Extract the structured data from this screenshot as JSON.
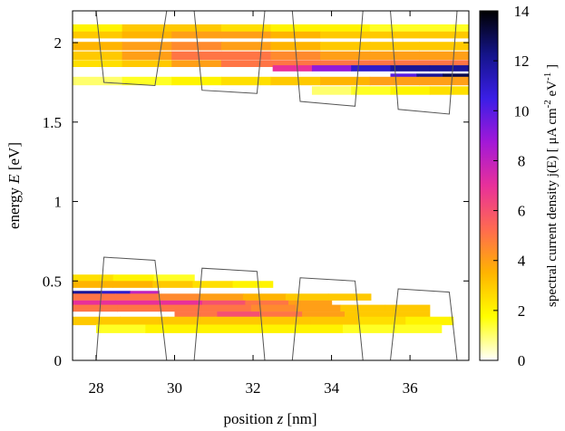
{
  "chart_data": {
    "type": "heatmap",
    "xlabel": "position z [nm]",
    "xlabel_parts": [
      "position ",
      "z",
      " [nm]"
    ],
    "ylabel": "energy E [eV]",
    "ylabel_parts": [
      "energy ",
      "E",
      " [eV]"
    ],
    "colorbar_label": "spectral current density  j(E) [ μA cm^-2 eV^-1 ]",
    "xlim": [
      27.4,
      37.5
    ],
    "ylim": [
      0,
      2.2
    ],
    "clim": [
      0,
      14
    ],
    "x_ticks": [
      28,
      30,
      32,
      34,
      36
    ],
    "x_tick_labels": [
      "28",
      "30",
      "32",
      "34",
      "36"
    ],
    "y_ticks": [
      0,
      0.5,
      1,
      1.5,
      2
    ],
    "y_tick_labels": [
      "0",
      "0.5",
      "1",
      "1.5",
      "2"
    ],
    "colorbar_ticks": [
      0,
      2,
      4,
      6,
      8,
      10,
      12,
      14
    ],
    "colorbar_tick_labels": [
      "0",
      "2",
      "4",
      "6",
      "8",
      "10",
      "12",
      "14"
    ],
    "colormap": [
      "#ffffff",
      "#ffff00",
      "#ffb400",
      "#ff6a50",
      "#e8309a",
      "#a218d8",
      "#3a1ee6",
      "#14148a",
      "#000000"
    ],
    "grid": false,
    "bands": [
      {
        "z0": 27.4,
        "z1": 37.5,
        "E": 2.09,
        "dE": 0.05,
        "j": [
          2,
          3,
          3,
          2.5,
          2,
          2,
          1.5,
          1.5
        ]
      },
      {
        "z0": 27.4,
        "z1": 37.5,
        "E": 2.05,
        "dE": 0.04,
        "j": [
          3,
          3.5,
          4,
          4,
          3.5,
          3,
          3,
          3
        ]
      },
      {
        "z0": 27.4,
        "z1": 37.5,
        "E": 1.98,
        "dE": 0.05,
        "j": [
          3.5,
          4,
          4.5,
          4,
          3.5,
          3,
          3,
          3
        ]
      },
      {
        "z0": 27.4,
        "z1": 37.5,
        "E": 1.92,
        "dE": 0.05,
        "j": [
          3,
          4,
          5,
          5,
          4.5,
          4,
          4,
          4
        ]
      },
      {
        "z0": 27.4,
        "z1": 37.5,
        "E": 1.87,
        "dE": 0.04,
        "j": [
          2.5,
          3,
          4,
          5,
          5,
          5,
          5,
          5
        ]
      },
      {
        "z0": 32.5,
        "z1": 37.5,
        "E": 1.84,
        "dE": 0.035,
        "j": [
          7,
          9,
          11,
          12,
          12
        ]
      },
      {
        "z0": 35.5,
        "z1": 37.5,
        "E": 1.79,
        "dE": 0.03,
        "j": [
          10,
          12,
          13
        ]
      },
      {
        "z0": 27.4,
        "z1": 37.5,
        "E": 1.76,
        "dE": 0.05,
        "j": [
          1,
          1.5,
          2,
          2.5,
          3,
          3.5,
          4,
          4
        ]
      },
      {
        "z0": 33.5,
        "z1": 37.5,
        "E": 1.7,
        "dE": 0.05,
        "j": [
          1,
          1.5,
          2,
          2.5
        ]
      },
      {
        "z0": 27.4,
        "z1": 30.5,
        "E": 0.52,
        "dE": 0.04,
        "j": [
          2.5,
          2,
          1.5
        ]
      },
      {
        "z0": 27.4,
        "z1": 32.5,
        "E": 0.48,
        "dE": 0.04,
        "j": [
          3.5,
          3.5,
          3,
          2.5,
          2
        ]
      },
      {
        "z0": 27.4,
        "z1": 29.6,
        "E": 0.42,
        "dE": 0.035,
        "j": [
          12,
          11,
          8
        ]
      },
      {
        "z0": 27.4,
        "z1": 35.0,
        "E": 0.4,
        "dE": 0.04,
        "j": [
          5,
          5,
          4.5,
          4,
          3.5,
          3,
          3
        ]
      },
      {
        "z0": 27.4,
        "z1": 34.0,
        "E": 0.36,
        "dE": 0.035,
        "j": [
          7,
          7,
          7,
          6,
          5,
          4
        ]
      },
      {
        "z0": 27.4,
        "z1": 36.5,
        "E": 0.33,
        "dE": 0.04,
        "j": [
          5,
          5,
          5,
          5,
          4.5,
          4,
          3,
          3
        ]
      },
      {
        "z0": 30.0,
        "z1": 36.5,
        "E": 0.29,
        "dE": 0.035,
        "j": [
          5,
          6,
          5,
          4,
          3,
          3
        ]
      },
      {
        "z0": 27.4,
        "z1": 37.1,
        "E": 0.25,
        "dE": 0.05,
        "j": [
          3,
          3,
          3,
          3,
          3,
          3,
          2.5,
          2
        ]
      },
      {
        "z0": 28.0,
        "z1": 36.8,
        "E": 0.2,
        "dE": 0.05,
        "j": [
          1.5,
          2,
          2,
          2,
          2,
          1.5,
          1.5
        ]
      }
    ],
    "band_edges": [
      {
        "name": "conduction",
        "points": [
          [
            28.0,
            2.2
          ],
          [
            28.2,
            1.75
          ],
          [
            29.5,
            1.73
          ],
          [
            29.8,
            2.2
          ],
          [
            30.5,
            2.2
          ],
          [
            30.7,
            1.7
          ],
          [
            32.1,
            1.68
          ],
          [
            32.3,
            2.2
          ],
          [
            33.0,
            2.2
          ],
          [
            33.2,
            1.63
          ],
          [
            34.6,
            1.6
          ],
          [
            34.8,
            2.2
          ],
          [
            35.5,
            2.2
          ],
          [
            35.7,
            1.58
          ],
          [
            37.0,
            1.55
          ],
          [
            37.2,
            2.2
          ]
        ]
      },
      {
        "name": "valence",
        "points": [
          [
            28.0,
            0
          ],
          [
            28.2,
            0.65
          ],
          [
            29.5,
            0.63
          ],
          [
            29.8,
            0
          ],
          [
            30.5,
            0
          ],
          [
            30.7,
            0.58
          ],
          [
            32.1,
            0.56
          ],
          [
            32.3,
            0
          ],
          [
            33.0,
            0
          ],
          [
            33.2,
            0.52
          ],
          [
            34.6,
            0.5
          ],
          [
            34.8,
            0
          ],
          [
            35.5,
            0
          ],
          [
            35.7,
            0.45
          ],
          [
            37.0,
            0.43
          ],
          [
            37.2,
            0
          ]
        ]
      }
    ]
  }
}
